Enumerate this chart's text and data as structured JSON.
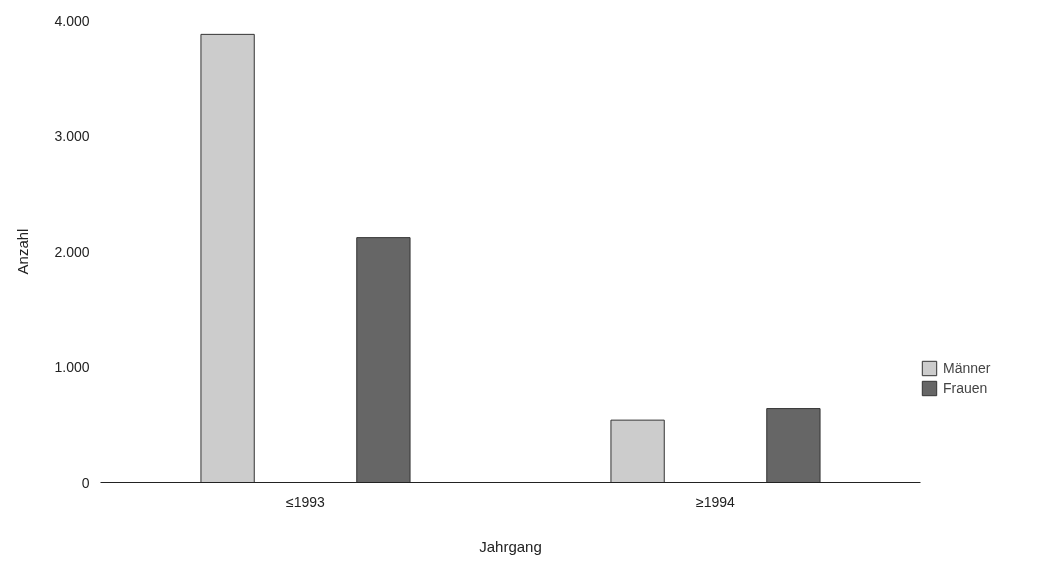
{
  "chart_data": {
    "type": "bar",
    "xlabel": "Jahrgang",
    "ylabel": "Anzahl",
    "categories": [
      "≤1993",
      "≥1994"
    ],
    "series": [
      {
        "name": "Männer",
        "color": "#cccccc",
        "values": [
          3880,
          540
        ]
      },
      {
        "name": "Frauen",
        "color": "#666666",
        "values": [
          2120,
          640
        ]
      }
    ],
    "ylim": [
      0,
      4000
    ],
    "yticks": [
      {
        "value": 0,
        "label": "0"
      },
      {
        "value": 1000,
        "label": "1.000"
      },
      {
        "value": 2000,
        "label": "2.000"
      },
      {
        "value": 3000,
        "label": "3.000"
      },
      {
        "value": 4000,
        "label": "4.000"
      }
    ],
    "grid": false,
    "legend": "right"
  }
}
